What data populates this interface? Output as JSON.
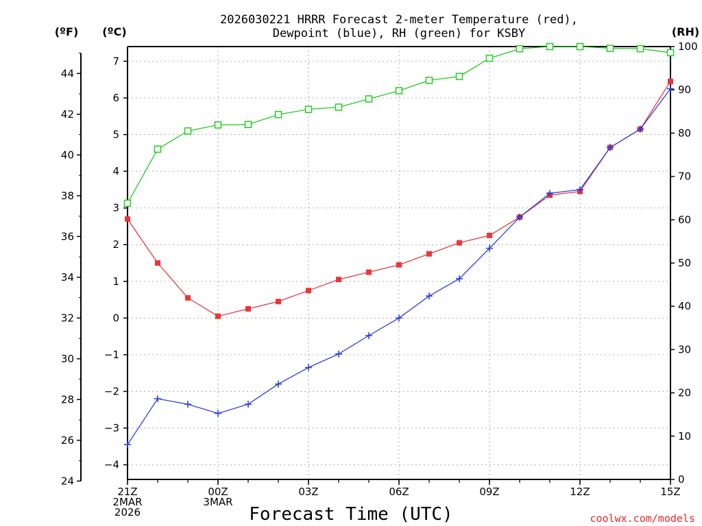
{
  "chart_data": {
    "type": "line",
    "title_line1": "2026030221 HRRR Forecast 2-meter Temperature (red),",
    "title_line2": "Dewpoint (blue), RH (green) for KSBY",
    "left_f_label": "(ºF)",
    "left_c_label": "(ºC)",
    "right_label": "(RH)",
    "xlabel": "Forecast Time (UTC)",
    "credit": "coolwx.com/models",
    "x_hours": [
      21,
      22,
      23,
      24,
      25,
      26,
      27,
      28,
      29,
      30,
      31,
      32,
      33,
      34,
      35,
      36,
      37,
      38,
      39
    ],
    "x_ticks": [
      {
        "hour": 21,
        "lines": [
          "21Z",
          "2MAR",
          "2026"
        ]
      },
      {
        "hour": 24,
        "lines": [
          "00Z",
          "3MAR"
        ]
      },
      {
        "hour": 27,
        "lines": [
          "03Z"
        ]
      },
      {
        "hour": 30,
        "lines": [
          "06Z"
        ]
      },
      {
        "hour": 33,
        "lines": [
          "09Z"
        ]
      },
      {
        "hour": 36,
        "lines": [
          "12Z"
        ]
      },
      {
        "hour": 39,
        "lines": [
          "15Z"
        ]
      }
    ],
    "celsius_ylim": [
      -4.4,
      7.4
    ],
    "celsius_ticks": [
      "-4",
      "-3",
      "-2",
      "-1",
      "0",
      "1",
      "2",
      "3",
      "4",
      "5",
      "6",
      "7"
    ],
    "fahrenheit_ticks": [
      "24",
      "26",
      "28",
      "30",
      "32",
      "34",
      "36",
      "38",
      "40",
      "42",
      "44"
    ],
    "rh_ylim": [
      0,
      100
    ],
    "rh_ticks": [
      "0",
      "10",
      "20",
      "30",
      "40",
      "50",
      "60",
      "70",
      "80",
      "90",
      "100"
    ],
    "series": [
      {
        "name": "Temperature",
        "color": "#e8383c",
        "marker": "square",
        "values_c": [
          2.7,
          1.5,
          0.55,
          0.05,
          0.25,
          0.45,
          0.75,
          1.05,
          1.25,
          1.45,
          1.75,
          2.05,
          2.25,
          2.75,
          3.35,
          3.45,
          4.65,
          5.15,
          6.45
        ]
      },
      {
        "name": "Dewpoint",
        "color": "#2a3ee0",
        "marker": "plus",
        "values_c": [
          -3.45,
          -2.2,
          -2.35,
          -2.6,
          -2.35,
          -1.8,
          -1.35,
          -0.98,
          -0.48,
          0.0,
          0.6,
          1.07,
          1.9,
          2.75,
          3.4,
          3.5,
          4.65,
          5.15,
          6.25
        ]
      },
      {
        "name": "RH",
        "color": "#22cc22",
        "marker": "open-square",
        "values_rh": [
          63.8,
          76.3,
          80.5,
          81.9,
          82.0,
          84.3,
          85.5,
          86.0,
          87.9,
          89.8,
          92.2,
          93.1,
          97.3,
          99.5,
          100.0,
          100.0,
          99.6,
          99.5,
          98.6
        ]
      }
    ]
  }
}
